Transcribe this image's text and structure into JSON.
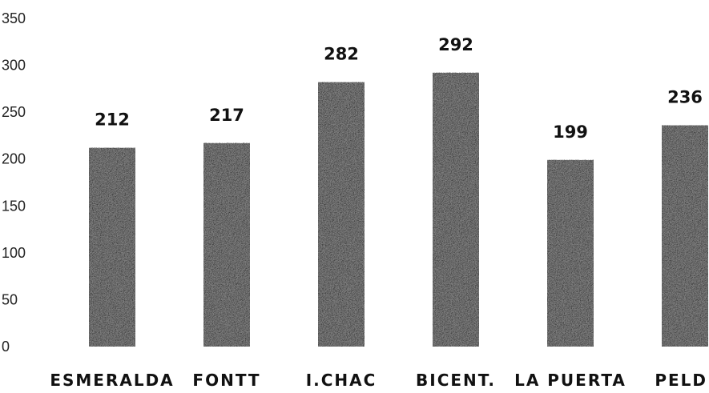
{
  "chart_data": {
    "type": "bar",
    "categories": [
      "ESMERALDA",
      "FONTT",
      "I.CHAC",
      "BICENT.",
      "LA PUERTA",
      "PELD."
    ],
    "values": [
      212,
      217,
      282,
      292,
      199,
      236
    ],
    "data_labels": [
      "212",
      "217",
      "282",
      "292",
      "199",
      "236"
    ],
    "y_ticks": [
      "0",
      "50",
      "100",
      "150",
      "200",
      "250",
      "300",
      "350"
    ],
    "ylim": [
      0,
      350
    ],
    "grid": false,
    "legend": "none",
    "bar_color": "#7a7a7a"
  }
}
